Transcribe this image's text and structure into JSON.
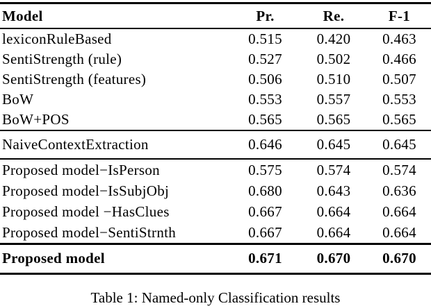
{
  "page": {
    "background_color": "#ffffff",
    "text_color": "#000000"
  },
  "table": {
    "columns": [
      {
        "label": "Model"
      },
      {
        "label": "Pr."
      },
      {
        "label": "Re."
      },
      {
        "label": "F-1"
      }
    ],
    "groups": [
      {
        "rows": [
          {
            "model": "lexiconRuleBased",
            "pr": "0.515",
            "re": "0.420",
            "f1": "0.463"
          },
          {
            "model": "SentiStrength (rule)",
            "pr": "0.527",
            "re": "0.502",
            "f1": "0.466"
          },
          {
            "model": "SentiStrength (features)",
            "pr": "0.506",
            "re": "0.510",
            "f1": "0.507"
          },
          {
            "model": "BoW",
            "pr": "0.553",
            "re": "0.557",
            "f1": "0.553"
          },
          {
            "model": "BoW+POS",
            "pr": "0.565",
            "re": "0.565",
            "f1": "0.565"
          }
        ]
      },
      {
        "rows": [
          {
            "model": "NaiveContextExtraction",
            "pr": "0.646",
            "re": "0.645",
            "f1": "0.645"
          }
        ]
      },
      {
        "rows": [
          {
            "model": "Proposed model−IsPerson",
            "pr": "0.575",
            "re": "0.574",
            "f1": "0.574"
          },
          {
            "model": "Proposed model−IsSubjObj",
            "pr": "0.680",
            "re": "0.643",
            "f1": "0.636"
          },
          {
            "model": "Proposed model −HasClues",
            "pr": "0.667",
            "re": "0.664",
            "f1": "0.664"
          },
          {
            "model": "Proposed model−SentiStrnth",
            "pr": "0.667",
            "re": "0.664",
            "f1": "0.664"
          }
        ]
      },
      {
        "rows": [
          {
            "model": "Proposed model",
            "pr": "0.671",
            "re": "0.670",
            "f1": "0.670"
          }
        ]
      }
    ]
  },
  "caption": "Table 1: Named-only Classification results"
}
